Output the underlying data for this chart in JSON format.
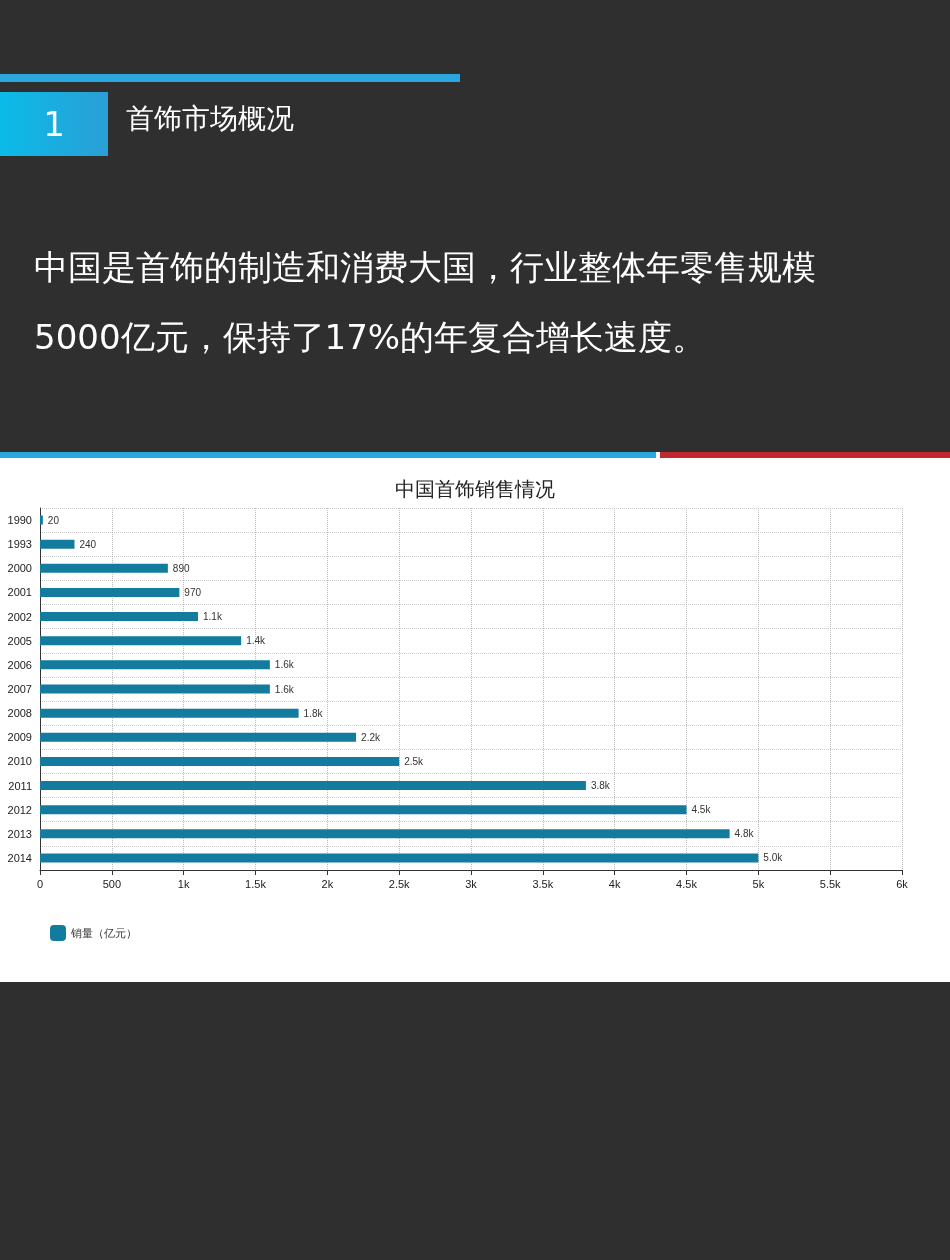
{
  "chart_data": {
    "type": "bar",
    "orientation": "horizontal",
    "title": "中国首饰销售情况",
    "annotations": [
      "1",
      "首饰市场概况",
      "中国是首饰的制造和消费大国，行业整体年零售规模5000亿元，保持了17%的年复合增长速度。"
    ],
    "categories": [
      "1990",
      "1993",
      "2000",
      "2001",
      "2002",
      "2005",
      "2006",
      "2007",
      "2008",
      "2009",
      "2010",
      "2011",
      "2012",
      "2013",
      "2014"
    ],
    "series": [
      {
        "name": "销量（亿元）",
        "color": "#127b9e",
        "values": [
          20,
          240,
          890,
          970,
          1100,
          1400,
          1600,
          1600,
          1800,
          2200,
          2500,
          3800,
          4500,
          4800,
          5000
        ],
        "value_labels": [
          "20",
          "240",
          "890",
          "970",
          "1.1k",
          "1.4k",
          "1.6k",
          "1.6k",
          "1.8k",
          "2.2k",
          "2.5k",
          "3.8k",
          "4.5k",
          "4.8k",
          "5.0k"
        ]
      }
    ],
    "xlim": [
      0,
      6000
    ],
    "xticks": [
      0,
      500,
      {
        "value": 1000,
        "label": "1k"
      },
      {
        "value": 1500,
        "label": "1.5k"
      },
      {
        "value": 2000,
        "label": "2k"
      },
      {
        "value": 2500,
        "label": "2.5k"
      },
      {
        "value": 3000,
        "label": "3k"
      },
      {
        "value": 3500,
        "label": "3.5k"
      },
      {
        "value": 4000,
        "label": "4k"
      },
      {
        "value": 4500,
        "label": "4.5k"
      },
      {
        "value": 5000,
        "label": "5k"
      },
      {
        "value": 5500,
        "label": "5.5k"
      },
      {
        "value": 6000,
        "label": "6k"
      }
    ],
    "grid": true,
    "legend": "bottom left"
  }
}
